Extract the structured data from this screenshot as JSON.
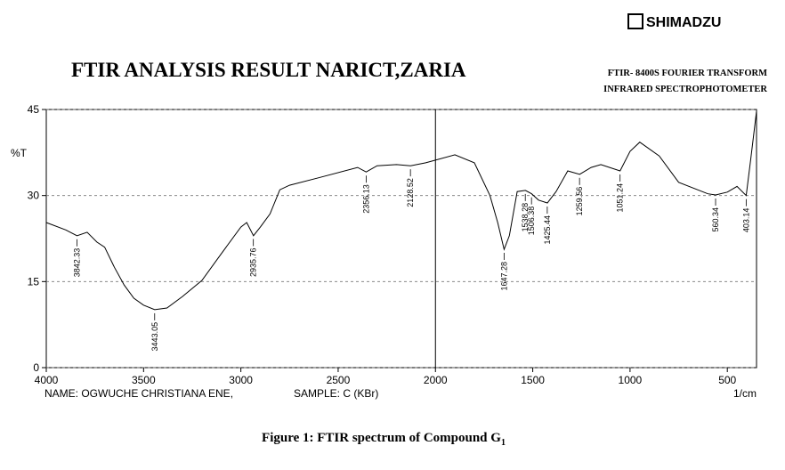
{
  "chart_data": {
    "type": "line",
    "brand": "SHIMADZU",
    "title": "FTIR ANALYSIS RESULT NARICT,ZARIA",
    "subtitle": [
      "FTIR- 8400S FOURIER TRANSFORM",
      "INFRARED SPECTROPHOTOMETER"
    ],
    "ylabel": "%T",
    "xlabel": "1/cm",
    "footer": [
      "NAME: OGWUCHE CHRISTIANA ENE,",
      "SAMPLE: C (KBr)"
    ],
    "caption": "Figure 1: FTIR spectrum of Compound G",
    "caption_subscript": "1",
    "xlim": [
      4000,
      350
    ],
    "ylim": [
      0,
      45
    ],
    "xticks": [
      4000,
      3500,
      3000,
      2500,
      2000,
      1500,
      1000,
      500
    ],
    "yticks": [
      0,
      15,
      30,
      45
    ],
    "grid": true,
    "color": "#000000",
    "x": [
      4000,
      3900,
      3842,
      3790,
      3740,
      3700,
      3650,
      3600,
      3550,
      3500,
      3443,
      3380,
      3300,
      3200,
      3100,
      3000,
      2970,
      2935,
      2900,
      2850,
      2800,
      2750,
      2600,
      2400,
      2356,
      2300,
      2200,
      2128,
      2050,
      1900,
      1800,
      1720,
      1680,
      1647,
      1620,
      1580,
      1538,
      1506,
      1470,
      1425,
      1380,
      1320,
      1259,
      1200,
      1150,
      1051,
      1000,
      950,
      850,
      750,
      600,
      560,
      500,
      450,
      403,
      380,
      350
    ],
    "values": [
      25.3,
      24.0,
      23.0,
      23.6,
      21.9,
      21.0,
      17.5,
      14.4,
      12.1,
      10.9,
      10.1,
      10.4,
      12.4,
      15.2,
      19.9,
      24.5,
      25.3,
      23.0,
      24.5,
      26.8,
      31.0,
      31.8,
      33.1,
      34.9,
      34.1,
      35.2,
      35.4,
      35.2,
      35.7,
      37.1,
      35.7,
      30.0,
      25.3,
      20.6,
      23.0,
      30.7,
      30.9,
      30.3,
      29.2,
      28.7,
      30.7,
      34.3,
      33.7,
      34.9,
      35.4,
      34.3,
      37.7,
      39.3,
      36.9,
      32.3,
      30.3,
      30.1,
      30.6,
      31.6,
      30.0,
      36.2,
      44.7
    ],
    "peaks": [
      3842.33,
      3443.05,
      2935.76,
      2356.13,
      2128.52,
      1647.28,
      1538.28,
      1506.38,
      1425.44,
      1259.56,
      1051.24,
      560.34,
      403.14
    ]
  }
}
